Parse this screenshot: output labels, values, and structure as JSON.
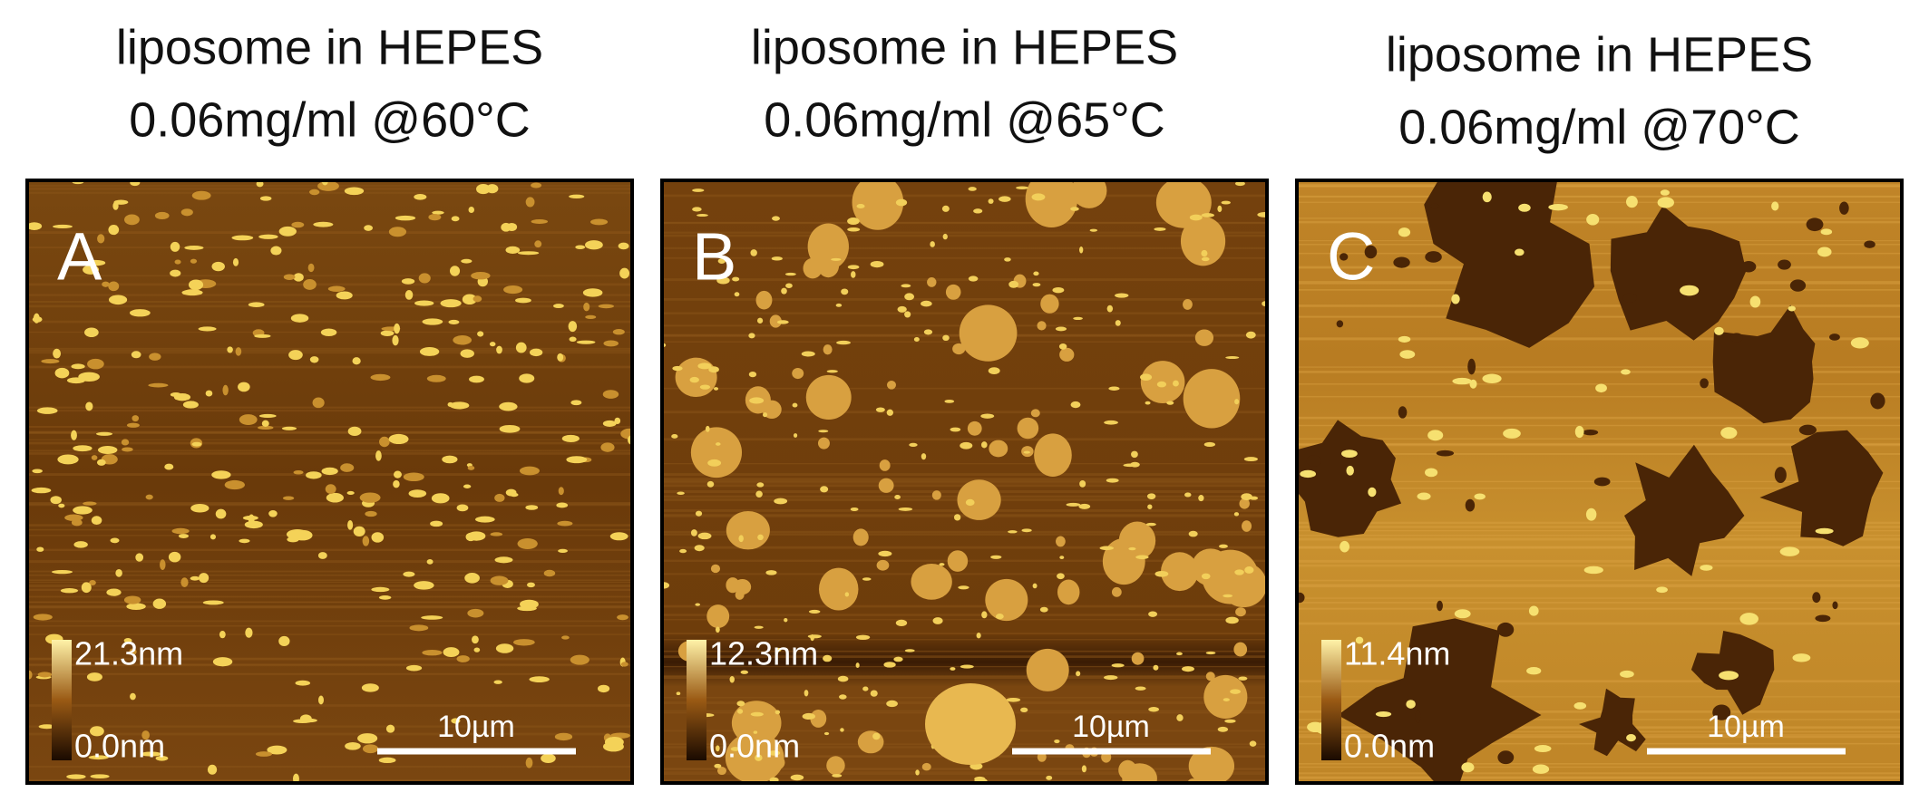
{
  "panels": [
    {
      "title": [
        "liposome in HEPES",
        "0.06mg/ml @60°C"
      ],
      "letter": "A",
      "colorbar_max": "21.3nm",
      "colorbar_min": "0.0nm",
      "scale_bar": "10µm"
    },
    {
      "title": [
        "liposome in HEPES",
        "0.06mg/ml @65°C"
      ],
      "letter": "B",
      "colorbar_max": "12.3nm",
      "colorbar_min": "0.0nm",
      "scale_bar": "10µm"
    },
    {
      "title": [
        "liposome in HEPES",
        "0.06mg/ml @70°C"
      ],
      "letter": "C",
      "colorbar_max": "11.4nm",
      "colorbar_min": "0.0nm",
      "scale_bar": "10µm"
    }
  ]
}
